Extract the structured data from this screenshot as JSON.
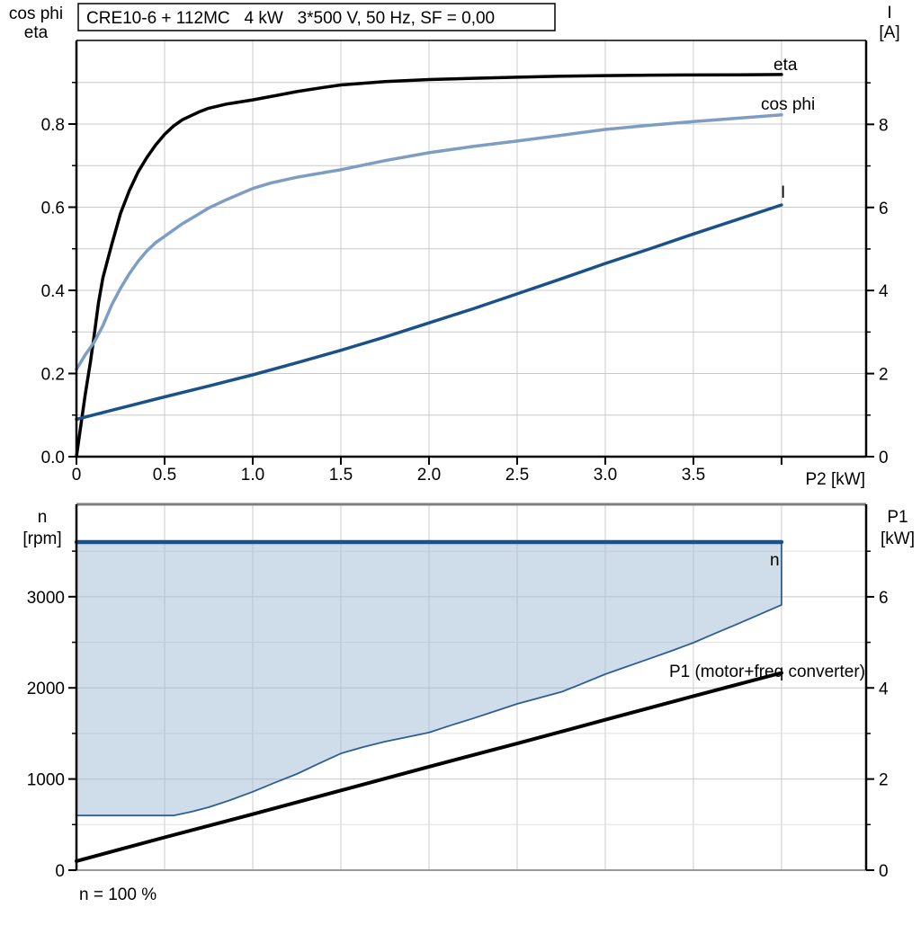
{
  "chart_data": [
    {
      "type": "line",
      "title": "CRE10-6 + 112MC   4 kW   3*500 V, 50 Hz, SF = 0,00",
      "x_axis": {
        "label": "P2 [kW]",
        "min": 0,
        "max": 4.48,
        "ticks": [
          [
            0,
            "0"
          ],
          [
            0.5,
            "0.5"
          ],
          [
            1,
            "1.0"
          ],
          [
            1.5,
            "1.5"
          ],
          [
            2,
            "2.0"
          ],
          [
            2.5,
            "2.5"
          ],
          [
            3,
            "3.0"
          ],
          [
            3.5,
            "3.5"
          ],
          [
            4,
            ""
          ]
        ],
        "grid": [
          0.5,
          1,
          1.5,
          2,
          2.5,
          3,
          3.5,
          4
        ]
      },
      "y_left": {
        "label_lines": [
          "cos phi",
          "eta"
        ],
        "min": 0,
        "max": 1.001,
        "ticks": [
          [
            0,
            "0.0"
          ],
          [
            0.2,
            "0.2"
          ],
          [
            0.4,
            "0.4"
          ],
          [
            0.6,
            "0.6"
          ],
          [
            0.8,
            "0.8"
          ]
        ],
        "minor_ticks": [
          0.1,
          0.3,
          0.5,
          0.7,
          0.9
        ],
        "grid_major": [
          0.1,
          0.2,
          0.3,
          0.4,
          0.5,
          0.6,
          0.7,
          0.8,
          0.9
        ],
        "grid_minor": []
      },
      "y_right": {
        "label_lines": [
          "I",
          "[A]"
        ],
        "min": 0,
        "max": 10.02,
        "ticks": [
          [
            0,
            "0"
          ],
          [
            2,
            "2"
          ],
          [
            4,
            "4"
          ],
          [
            6,
            "6"
          ],
          [
            8,
            "8"
          ]
        ],
        "minor_ticks": [
          1,
          3,
          5,
          7,
          9
        ],
        "grid_major": [],
        "grid_minor": []
      },
      "series": [
        {
          "name": "eta",
          "label": "eta",
          "axis": "left",
          "color": "#000000",
          "width": 3.5,
          "points": [
            [
              0,
              0
            ],
            [
              0.02,
              0.06
            ],
            [
              0.05,
              0.15
            ],
            [
              0.08,
              0.23
            ],
            [
              0.1,
              0.29
            ],
            [
              0.125,
              0.37
            ],
            [
              0.15,
              0.43
            ],
            [
              0.175,
              0.47
            ],
            [
              0.2,
              0.51
            ],
            [
              0.25,
              0.585
            ],
            [
              0.3,
              0.64
            ],
            [
              0.35,
              0.685
            ],
            [
              0.4,
              0.72
            ],
            [
              0.45,
              0.75
            ],
            [
              0.5,
              0.775
            ],
            [
              0.55,
              0.795
            ],
            [
              0.6,
              0.81
            ],
            [
              0.7,
              0.83
            ],
            [
              0.75,
              0.838
            ],
            [
              0.85,
              0.848
            ],
            [
              1.0,
              0.858
            ],
            [
              1.15,
              0.87
            ],
            [
              1.25,
              0.878
            ],
            [
              1.4,
              0.888
            ],
            [
              1.5,
              0.894
            ],
            [
              1.75,
              0.902
            ],
            [
              2.0,
              0.907
            ],
            [
              2.25,
              0.91
            ],
            [
              2.5,
              0.9125
            ],
            [
              2.75,
              0.915
            ],
            [
              3.0,
              0.9165
            ],
            [
              3.25,
              0.9175
            ],
            [
              3.5,
              0.918
            ],
            [
              3.75,
              0.9185
            ],
            [
              4.0,
              0.919
            ]
          ]
        },
        {
          "name": "cos phi",
          "label": "cos phi",
          "axis": "left",
          "color": "#7D9EC2",
          "width": 3.5,
          "points": [
            [
              0,
              0.21
            ],
            [
              0.05,
              0.245
            ],
            [
              0.1,
              0.275
            ],
            [
              0.125,
              0.295
            ],
            [
              0.15,
              0.315
            ],
            [
              0.2,
              0.365
            ],
            [
              0.25,
              0.405
            ],
            [
              0.3,
              0.44
            ],
            [
              0.35,
              0.47
            ],
            [
              0.4,
              0.495
            ],
            [
              0.45,
              0.515
            ],
            [
              0.5,
              0.53
            ],
            [
              0.6,
              0.56
            ],
            [
              0.7,
              0.585
            ],
            [
              0.75,
              0.598
            ],
            [
              0.85,
              0.618
            ],
            [
              1.0,
              0.645
            ],
            [
              1.1,
              0.658
            ],
            [
              1.25,
              0.672
            ],
            [
              1.4,
              0.683
            ],
            [
              1.5,
              0.69
            ],
            [
              1.75,
              0.712
            ],
            [
              2.0,
              0.731
            ],
            [
              2.25,
              0.746
            ],
            [
              2.5,
              0.759
            ],
            [
              2.75,
              0.773
            ],
            [
              3.0,
              0.787
            ],
            [
              3.25,
              0.797
            ],
            [
              3.5,
              0.806
            ],
            [
              3.75,
              0.814
            ],
            [
              4.0,
              0.822
            ]
          ]
        },
        {
          "name": "I",
          "label": "I",
          "axis": "right",
          "color": "#1A5189",
          "width": 3.5,
          "points": [
            [
              0,
              0.9
            ],
            [
              0.25,
              1.17
            ],
            [
              0.5,
              1.44
            ],
            [
              0.75,
              1.7
            ],
            [
              1.0,
              1.97
            ],
            [
              1.25,
              2.26
            ],
            [
              1.5,
              2.56
            ],
            [
              1.75,
              2.88
            ],
            [
              2.0,
              3.22
            ],
            [
              2.25,
              3.56
            ],
            [
              2.5,
              3.92
            ],
            [
              2.75,
              4.28
            ],
            [
              3.0,
              4.65
            ],
            [
              3.25,
              5.0
            ],
            [
              3.5,
              5.36
            ],
            [
              3.75,
              5.71
            ],
            [
              4.0,
              6.06
            ]
          ]
        }
      ]
    },
    {
      "type": "line+area",
      "x_axis": {
        "label": "",
        "min": 0,
        "max": 4.48,
        "ticks": [],
        "grid": [
          0.5,
          1,
          1.5,
          2,
          2.5,
          3,
          3.5,
          4
        ]
      },
      "y_left": {
        "label_lines": [
          "n",
          "[rpm]"
        ],
        "min": 0,
        "max": 4014,
        "ticks": [
          [
            0,
            "0"
          ],
          [
            1000,
            "1000"
          ],
          [
            2000,
            "2000"
          ],
          [
            3000,
            "3000"
          ]
        ],
        "minor_ticks": [
          500,
          1500,
          2500,
          3500
        ],
        "grid_major": [
          1000,
          2000,
          3000
        ],
        "grid_minor": [
          500,
          1500,
          2500,
          3500
        ]
      },
      "y_right": {
        "label_lines": [
          "P1",
          "[kW]"
        ],
        "min": 0,
        "max": 8.03,
        "ticks": [
          [
            0,
            "0"
          ],
          [
            2,
            "2"
          ],
          [
            4,
            "4"
          ],
          [
            6,
            "6"
          ]
        ],
        "minor_ticks": [
          1,
          3,
          5,
          7
        ],
        "grid_major": [],
        "grid_minor": []
      },
      "area": {
        "name": "speed-duty-range",
        "fill": "rgba(160,186,214,0.5)",
        "stroke": "#2E5E94",
        "stroke_width": 1.8,
        "upper": [
          [
            0,
            3600
          ],
          [
            4,
            3600
          ]
        ],
        "lower": [
          [
            0,
            600
          ],
          [
            0.55,
            600
          ],
          [
            0.65,
            640
          ],
          [
            0.75,
            690
          ],
          [
            0.875,
            770
          ],
          [
            1.0,
            860
          ],
          [
            1.125,
            960
          ],
          [
            1.25,
            1055
          ],
          [
            1.375,
            1170
          ],
          [
            1.5,
            1280
          ],
          [
            1.625,
            1350
          ],
          [
            1.75,
            1410
          ],
          [
            1.875,
            1460
          ],
          [
            2.0,
            1510
          ],
          [
            2.125,
            1590
          ],
          [
            2.25,
            1665
          ],
          [
            2.375,
            1745
          ],
          [
            2.5,
            1825
          ],
          [
            2.625,
            1890
          ],
          [
            2.75,
            1955
          ],
          [
            2.875,
            2050
          ],
          [
            3.0,
            2150
          ],
          [
            3.125,
            2235
          ],
          [
            3.25,
            2320
          ],
          [
            3.375,
            2405
          ],
          [
            3.5,
            2495
          ],
          [
            3.625,
            2600
          ],
          [
            3.75,
            2700
          ],
          [
            3.875,
            2805
          ],
          [
            4.0,
            2910
          ]
        ]
      },
      "series": [
        {
          "name": "n",
          "label": "n",
          "axis": "left",
          "color": "#1A5189",
          "width": 4.5,
          "points": [
            [
              0,
              3600
            ],
            [
              4,
              3600
            ]
          ]
        },
        {
          "name": "n-min",
          "label": "",
          "axis": "left",
          "color": "#2E5E94",
          "width": 1.8,
          "points": []
        },
        {
          "name": "P1",
          "label": "P1 (motor+freq converter)",
          "axis": "right",
          "color": "#000000",
          "width": 4,
          "points": [
            [
              0,
              0.2
            ],
            [
              0.5,
              0.72
            ],
            [
              1.0,
              1.23
            ],
            [
              1.5,
              1.75
            ],
            [
              2.0,
              2.27
            ],
            [
              2.5,
              2.78
            ],
            [
              3.0,
              3.3
            ],
            [
              3.5,
              3.82
            ],
            [
              4.0,
              4.33
            ]
          ]
        }
      ],
      "annotation": "n = 100 %"
    }
  ]
}
